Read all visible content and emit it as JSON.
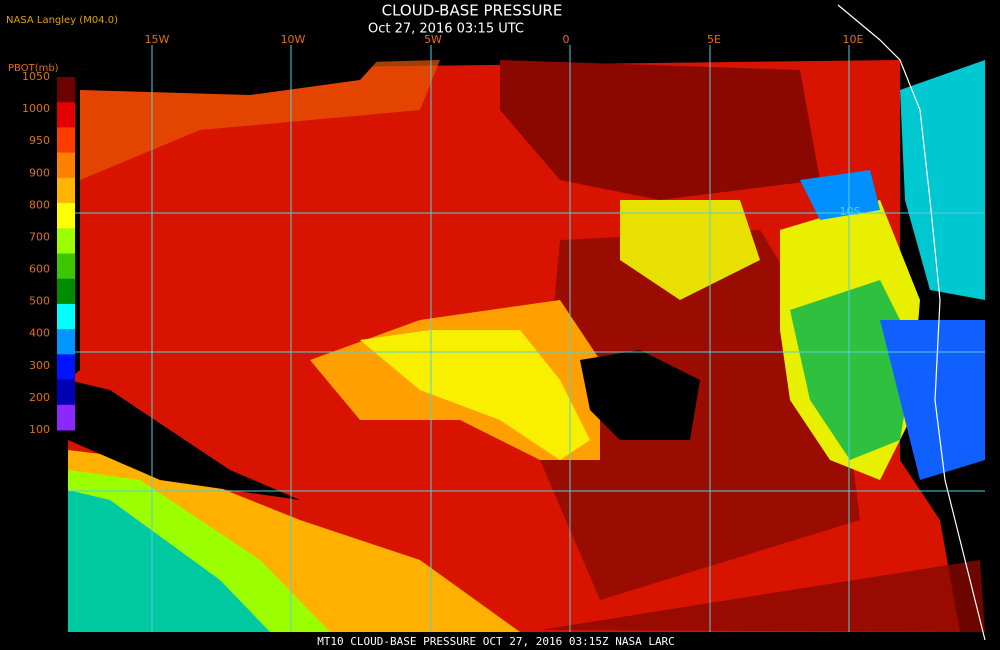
{
  "header": {
    "title": "CLOUD-BASE PRESSURE",
    "subtitle": "Oct 27, 2016 03:15 UTC",
    "source": "NASA Langley (M04.0)"
  },
  "colorbar": {
    "label": "PBOT(mb)",
    "ticks": [
      "1050",
      "1000",
      "950",
      "900",
      "800",
      "700",
      "600",
      "500",
      "400",
      "300",
      "200",
      "100"
    ],
    "colors": [
      "#6e0000",
      "#e40000",
      "#ff3c00",
      "#ff8000",
      "#ffb400",
      "#ffff00",
      "#9cff00",
      "#3cc800",
      "#008c00",
      "#00ffff",
      "#0096ff",
      "#0014ff",
      "#0000b4",
      "#8c28ff"
    ]
  },
  "map": {
    "lon_labels": [
      "15W",
      "10W",
      "5W",
      "0",
      "5E",
      "10E"
    ],
    "lat_labels": [
      "10S"
    ]
  },
  "footer": "MT10  CLOUD-BASE PRESSURE  OCT 27, 2016 03:15Z  NASA LARC"
}
